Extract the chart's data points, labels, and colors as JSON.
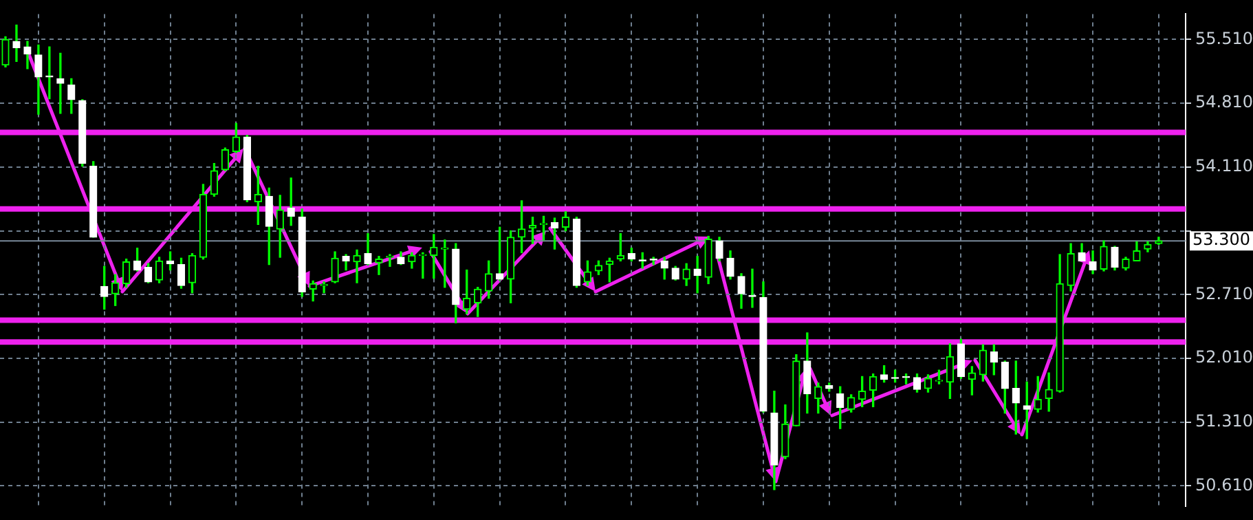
{
  "chart_data": {
    "type": "candlestick",
    "categories": [
      null,
      null,
      null,
      null,
      null,
      null,
      null,
      null,
      null,
      null,
      null,
      null,
      null,
      null,
      null,
      null,
      null,
      null,
      null,
      null,
      null,
      null,
      null,
      null,
      null,
      null,
      null,
      null,
      null,
      null,
      null,
      null,
      null,
      null,
      null,
      null,
      null,
      null,
      null,
      null,
      null,
      null,
      null,
      null,
      null,
      null,
      null,
      null,
      null,
      null,
      null,
      null,
      null,
      null,
      null,
      null,
      null,
      null,
      null,
      null,
      null,
      null,
      null,
      null,
      null,
      null,
      null,
      null,
      null,
      null,
      null,
      null,
      null,
      null,
      null,
      null,
      null,
      null,
      null,
      null,
      null,
      null,
      null,
      null,
      null,
      null,
      null,
      null,
      null,
      null,
      null,
      null,
      null,
      null,
      null,
      null,
      null,
      null,
      null,
      null,
      null,
      null,
      null,
      null,
      null,
      null
    ],
    "ohlc": [
      [
        55.23,
        55.54,
        55.21,
        55.51
      ],
      [
        55.49,
        55.67,
        55.27,
        55.42
      ],
      [
        55.43,
        55.49,
        55.19,
        55.35
      ],
      [
        55.34,
        55.45,
        54.69,
        55.1
      ],
      [
        55.11,
        55.43,
        54.86,
        55.1
      ],
      [
        55.08,
        55.36,
        54.7,
        55.03
      ],
      [
        55.01,
        55.08,
        54.7,
        54.85
      ],
      [
        54.84,
        54.85,
        54.12,
        54.15
      ],
      [
        54.12,
        54.17,
        53.34,
        53.34
      ],
      [
        52.8,
        53.02,
        52.55,
        52.69
      ],
      [
        52.72,
        52.93,
        52.59,
        52.84
      ],
      [
        52.83,
        53.1,
        52.79,
        53.07
      ],
      [
        53.08,
        53.22,
        52.97,
        52.98
      ],
      [
        53.01,
        53.05,
        52.84,
        52.85
      ],
      [
        52.87,
        53.12,
        52.84,
        53.08
      ],
      [
        53.08,
        53.18,
        52.98,
        53.05
      ],
      [
        53.04,
        53.11,
        52.78,
        52.81
      ],
      [
        52.84,
        53.16,
        52.73,
        53.14
      ],
      [
        53.12,
        53.92,
        53.1,
        53.81
      ],
      [
        53.81,
        54.15,
        53.79,
        54.07
      ],
      [
        54.08,
        54.32,
        54.07,
        54.3
      ],
      [
        54.28,
        54.59,
        54.27,
        54.44
      ],
      [
        54.44,
        54.46,
        53.73,
        53.75
      ],
      [
        53.73,
        54.12,
        53.48,
        53.81
      ],
      [
        53.79,
        53.88,
        53.04,
        53.46
      ],
      [
        53.43,
        53.8,
        53.12,
        53.64
      ],
      [
        53.66,
        53.99,
        53.47,
        53.57
      ],
      [
        53.56,
        53.65,
        52.69,
        52.74
      ],
      [
        52.77,
        52.86,
        52.64,
        52.83
      ],
      [
        52.81,
        52.85,
        52.73,
        52.82
      ],
      [
        52.85,
        53.18,
        52.84,
        53.11
      ],
      [
        53.13,
        53.15,
        52.98,
        53.08
      ],
      [
        53.07,
        53.2,
        52.84,
        53.14
      ],
      [
        53.16,
        53.38,
        53.04,
        53.05
      ],
      [
        53.06,
        53.13,
        52.93,
        53.1
      ],
      [
        53.12,
        53.15,
        53.02,
        53.13
      ],
      [
        53.12,
        53.18,
        53.04,
        53.05
      ],
      [
        53.07,
        53.17,
        53.0,
        53.14
      ],
      [
        53.14,
        53.17,
        52.89,
        53.15
      ],
      [
        53.14,
        53.37,
        52.89,
        53.23
      ],
      [
        53.21,
        53.31,
        52.79,
        53.22
      ],
      [
        53.21,
        53.27,
        52.4,
        52.6
      ],
      [
        52.55,
        52.98,
        52.5,
        52.67
      ],
      [
        52.62,
        52.79,
        52.47,
        52.77
      ],
      [
        52.75,
        53.08,
        52.67,
        52.94
      ],
      [
        52.94,
        53.45,
        52.87,
        52.88
      ],
      [
        52.88,
        53.41,
        52.62,
        53.34
      ],
      [
        53.34,
        53.74,
        53.17,
        53.43
      ],
      [
        53.44,
        53.56,
        53.27,
        53.47
      ],
      [
        53.48,
        53.57,
        53.31,
        53.49
      ],
      [
        53.5,
        53.55,
        53.21,
        53.44
      ],
      [
        53.45,
        53.62,
        53.41,
        53.56
      ],
      [
        53.54,
        53.56,
        52.79,
        52.81
      ],
      [
        52.85,
        53.08,
        52.81,
        52.96
      ],
      [
        52.97,
        53.08,
        52.93,
        53.03
      ],
      [
        53.04,
        53.11,
        52.85,
        53.08
      ],
      [
        53.1,
        53.38,
        53.08,
        53.14
      ],
      [
        53.16,
        53.22,
        53.08,
        53.1
      ],
      [
        53.09,
        53.17,
        53.0,
        53.08
      ],
      [
        53.1,
        53.12,
        53.04,
        53.09
      ],
      [
        53.08,
        53.12,
        52.88,
        53.0
      ],
      [
        53.0,
        53.02,
        52.87,
        52.88
      ],
      [
        52.88,
        53.05,
        52.81,
        52.99
      ],
      [
        52.99,
        53.13,
        52.73,
        52.92
      ],
      [
        52.9,
        53.35,
        52.83,
        53.32
      ],
      [
        53.3,
        53.34,
        53.08,
        53.11
      ],
      [
        53.11,
        53.19,
        52.88,
        52.91
      ],
      [
        52.91,
        52.94,
        52.56,
        52.72
      ],
      [
        52.7,
        52.99,
        52.57,
        52.69
      ],
      [
        52.68,
        52.85,
        51.42,
        51.43
      ],
      [
        51.41,
        51.65,
        50.57,
        50.84
      ],
      [
        50.93,
        51.5,
        50.91,
        51.29
      ],
      [
        51.27,
        52.05,
        51.27,
        51.98
      ],
      [
        51.98,
        52.29,
        51.41,
        51.62
      ],
      [
        51.57,
        51.74,
        51.41,
        51.7
      ],
      [
        51.71,
        51.74,
        51.65,
        51.68
      ],
      [
        51.62,
        51.7,
        51.24,
        51.47
      ],
      [
        51.45,
        51.61,
        51.42,
        51.58
      ],
      [
        51.56,
        51.81,
        51.48,
        51.65
      ],
      [
        51.66,
        51.84,
        51.48,
        51.81
      ],
      [
        51.83,
        51.93,
        51.75,
        51.78
      ],
      [
        51.8,
        51.88,
        51.75,
        51.79
      ],
      [
        51.81,
        51.84,
        51.73,
        51.8
      ],
      [
        51.8,
        51.84,
        51.64,
        51.67
      ],
      [
        51.68,
        51.83,
        51.64,
        51.79
      ],
      [
        51.76,
        51.88,
        51.73,
        51.77
      ],
      [
        51.75,
        52.17,
        51.57,
        52.03
      ],
      [
        52.17,
        52.22,
        51.79,
        51.81
      ],
      [
        51.78,
        51.92,
        51.61,
        51.85
      ],
      [
        51.83,
        52.16,
        51.76,
        52.1
      ],
      [
        52.08,
        52.16,
        51.83,
        51.97
      ],
      [
        51.97,
        51.98,
        51.41,
        51.68
      ],
      [
        51.68,
        51.98,
        51.18,
        51.52
      ],
      [
        51.49,
        51.75,
        51.13,
        51.45
      ],
      [
        51.45,
        51.81,
        51.42,
        51.56
      ],
      [
        51.57,
        51.85,
        51.43,
        51.67
      ],
      [
        51.65,
        53.15,
        51.64,
        52.83
      ],
      [
        52.81,
        53.27,
        52.75,
        53.16
      ],
      [
        53.17,
        53.27,
        53.08,
        53.08
      ],
      [
        53.07,
        53.19,
        52.94,
        52.98
      ],
      [
        52.99,
        53.3,
        52.97,
        53.24
      ],
      [
        53.23,
        53.24,
        52.98,
        53.01
      ],
      [
        53.0,
        53.12,
        52.98,
        53.1
      ],
      [
        53.08,
        53.29,
        53.08,
        53.19
      ],
      [
        53.21,
        53.29,
        53.18,
        53.26
      ],
      [
        53.27,
        53.34,
        53.26,
        53.3
      ]
    ],
    "ylim": [
      50.39,
      55.79
    ],
    "yticks": [
      {
        "value": 50.61,
        "label": "50.610"
      },
      {
        "value": 51.31,
        "label": "51.310"
      },
      {
        "value": 52.01,
        "label": "52.010"
      },
      {
        "value": 52.71,
        "label": "52.710"
      },
      {
        "value": 53.41,
        "label": null
      },
      {
        "value": 54.11,
        "label": "54.110"
      },
      {
        "value": 54.81,
        "label": "54.810"
      },
      {
        "value": 55.51,
        "label": "55.510"
      }
    ],
    "ref_lines": [
      {
        "axis": "y",
        "value": 54.49,
        "color": "#ee22ee"
      },
      {
        "axis": "y",
        "value": 53.65,
        "color": "#ee22ee"
      },
      {
        "axis": "y",
        "value": 52.43,
        "color": "#ee22ee"
      },
      {
        "axis": "y",
        "value": 52.19,
        "color": "#ee22ee"
      },
      {
        "axis": "y",
        "value": 53.3,
        "label": "53.300",
        "color": "#7a8a9a"
      }
    ],
    "grid": true,
    "tick_labels": "y"
  }
}
